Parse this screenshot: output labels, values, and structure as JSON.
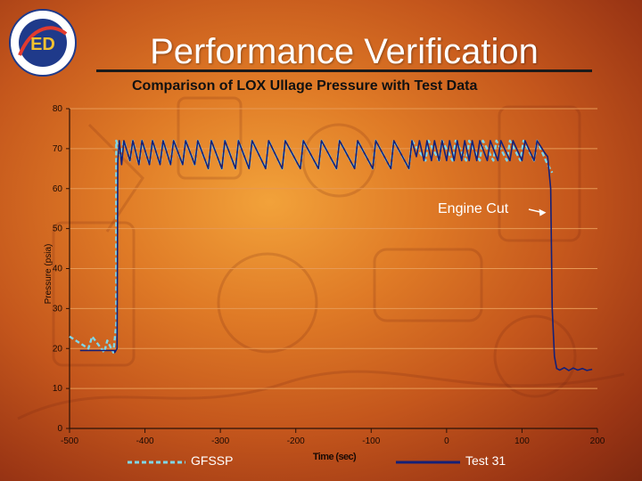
{
  "slide": {
    "title": "Performance Verification",
    "logo_text": "ENGINEERING DIRECTORATE",
    "logo_mark": "ED"
  },
  "colors": {
    "gfssp": "#7fd7e8",
    "test": "#142078",
    "grid": "#e79a55",
    "axis": "#2a1208"
  },
  "chart_data": {
    "type": "line",
    "title": "Comparison of LOX Ullage Pressure with Test Data",
    "xlabel": "Time (sec)",
    "ylabel": "Pressure (psia)",
    "xlim": [
      -500,
      200
    ],
    "ylim": [
      0,
      80
    ],
    "xticks": [
      -500,
      -400,
      -300,
      -200,
      -100,
      0,
      100,
      200
    ],
    "yticks": [
      0,
      10,
      20,
      30,
      40,
      50,
      60,
      70,
      80
    ],
    "legend_position": "bottom",
    "annotations": [
      {
        "text": "Engine Cut",
        "x": 132,
        "y": 54
      }
    ],
    "series": [
      {
        "name": "GFSSP",
        "style": "dashed",
        "points": [
          [
            -500,
            23
          ],
          [
            -475,
            20
          ],
          [
            -470,
            23
          ],
          [
            -454,
            19
          ],
          [
            -450,
            22
          ],
          [
            -442,
            19
          ],
          [
            -438,
            26
          ],
          [
            -438,
            72
          ],
          [
            -432,
            68
          ],
          [
            -428,
            72
          ],
          [
            -420,
            67
          ],
          [
            -416,
            72
          ],
          [
            -408,
            66
          ],
          [
            -404,
            72
          ],
          [
            -394,
            66
          ],
          [
            -390,
            72
          ],
          [
            -380,
            66
          ],
          [
            -376,
            72
          ],
          [
            -366,
            66
          ],
          [
            -362,
            72
          ],
          [
            -350,
            66
          ],
          [
            -346,
            72
          ],
          [
            -334,
            66
          ],
          [
            -330,
            72
          ],
          [
            -316,
            65
          ],
          [
            -312,
            72
          ],
          [
            -298,
            65
          ],
          [
            -294,
            72
          ],
          [
            -280,
            65
          ],
          [
            -276,
            72
          ],
          [
            -262,
            65
          ],
          [
            -258,
            72
          ],
          [
            -240,
            65
          ],
          [
            -236,
            72
          ],
          [
            -218,
            65
          ],
          [
            -214,
            72
          ],
          [
            -194,
            65
          ],
          [
            -190,
            72
          ],
          [
            -170,
            65
          ],
          [
            -166,
            72
          ],
          [
            -146,
            65
          ],
          [
            -142,
            72
          ],
          [
            -122,
            65
          ],
          [
            -118,
            72
          ],
          [
            -98,
            65
          ],
          [
            -94,
            72
          ],
          [
            -74,
            65
          ],
          [
            -70,
            72
          ],
          [
            -50,
            65
          ],
          [
            -46,
            72
          ],
          [
            -28,
            67
          ],
          [
            -24,
            72
          ],
          [
            -10,
            67
          ],
          [
            -6,
            72
          ],
          [
            8,
            67
          ],
          [
            12,
            72
          ],
          [
            26,
            67
          ],
          [
            30,
            72
          ],
          [
            44,
            67
          ],
          [
            48,
            72
          ],
          [
            62,
            67
          ],
          [
            66,
            72
          ],
          [
            80,
            67
          ],
          [
            84,
            72
          ],
          [
            98,
            67
          ],
          [
            102,
            72
          ],
          [
            116,
            67
          ],
          [
            120,
            72
          ],
          [
            134,
            66
          ],
          [
            140,
            64
          ]
        ]
      },
      {
        "name": "Test 31",
        "style": "solid",
        "points": [
          [
            -486,
            19.5
          ],
          [
            -440,
            19.5
          ],
          [
            -440,
            19
          ],
          [
            -437,
            20
          ],
          [
            -436,
            67
          ],
          [
            -434,
            72
          ],
          [
            -431,
            66
          ],
          [
            -428,
            72
          ],
          [
            -420,
            67
          ],
          [
            -416,
            72
          ],
          [
            -408,
            66
          ],
          [
            -404,
            72
          ],
          [
            -394,
            66
          ],
          [
            -390,
            72
          ],
          [
            -380,
            66
          ],
          [
            -376,
            72
          ],
          [
            -366,
            66
          ],
          [
            -362,
            72
          ],
          [
            -350,
            66
          ],
          [
            -346,
            72
          ],
          [
            -334,
            66
          ],
          [
            -330,
            72
          ],
          [
            -316,
            65
          ],
          [
            -312,
            72
          ],
          [
            -298,
            65
          ],
          [
            -294,
            72
          ],
          [
            -280,
            65
          ],
          [
            -276,
            72
          ],
          [
            -262,
            65
          ],
          [
            -258,
            72
          ],
          [
            -240,
            65
          ],
          [
            -236,
            72
          ],
          [
            -218,
            65
          ],
          [
            -214,
            72
          ],
          [
            -194,
            65
          ],
          [
            -190,
            72
          ],
          [
            -170,
            65
          ],
          [
            -166,
            72
          ],
          [
            -146,
            65
          ],
          [
            -142,
            72
          ],
          [
            -122,
            65
          ],
          [
            -118,
            72
          ],
          [
            -98,
            65
          ],
          [
            -94,
            72
          ],
          [
            -74,
            65
          ],
          [
            -70,
            72
          ],
          [
            -50,
            65
          ],
          [
            -46,
            72
          ],
          [
            -40,
            68
          ],
          [
            -36,
            72
          ],
          [
            -30,
            67
          ],
          [
            -26,
            72
          ],
          [
            -20,
            67
          ],
          [
            -16,
            72
          ],
          [
            -10,
            67
          ],
          [
            -6,
            72
          ],
          [
            0,
            67
          ],
          [
            4,
            72
          ],
          [
            10,
            67
          ],
          [
            14,
            72
          ],
          [
            20,
            67
          ],
          [
            24,
            72
          ],
          [
            30,
            67
          ],
          [
            34,
            72
          ],
          [
            40,
            67
          ],
          [
            44,
            72
          ],
          [
            54,
            67
          ],
          [
            58,
            72
          ],
          [
            68,
            67
          ],
          [
            72,
            72
          ],
          [
            84,
            67
          ],
          [
            88,
            72
          ],
          [
            100,
            67
          ],
          [
            104,
            72
          ],
          [
            116,
            67
          ],
          [
            120,
            72
          ],
          [
            130,
            69
          ],
          [
            134,
            68
          ],
          [
            138,
            60
          ],
          [
            140,
            30
          ],
          [
            143,
            18
          ],
          [
            146,
            15
          ],
          [
            150,
            14.6
          ],
          [
            156,
            15.2
          ],
          [
            162,
            14.5
          ],
          [
            168,
            15.1
          ],
          [
            174,
            14.6
          ],
          [
            180,
            15
          ],
          [
            186,
            14.5
          ],
          [
            193,
            14.8
          ]
        ]
      }
    ]
  }
}
